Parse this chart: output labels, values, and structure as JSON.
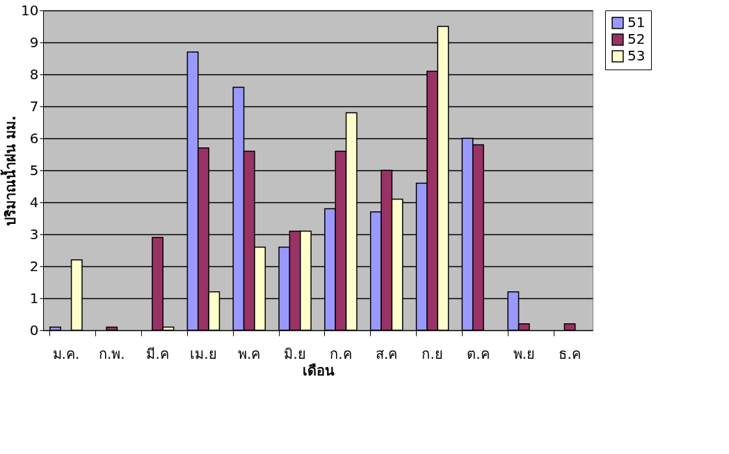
{
  "chart_data": {
    "type": "bar",
    "xlabel": "เดือน",
    "ylabel": "ปริมาณน้ำฝน  มม.",
    "categories": [
      "ม.ค.",
      "ก.พ.",
      "มี.ค",
      "เม.ย",
      "พ.ค",
      "มิ.ย",
      "ก.ค",
      "ส.ค",
      "ก.ย",
      "ต.ค",
      "พ.ย",
      "ธ.ค"
    ],
    "series": [
      {
        "name": "51",
        "color": "#9999ff",
        "values": [
          0.1,
          null,
          null,
          8.7,
          7.6,
          2.6,
          3.8,
          3.7,
          4.6,
          6.0,
          1.2,
          null
        ]
      },
      {
        "name": "52",
        "color": "#993366",
        "values": [
          null,
          0.1,
          2.9,
          5.7,
          5.6,
          3.1,
          5.6,
          5.0,
          8.1,
          5.8,
          0.2,
          0.2
        ]
      },
      {
        "name": "53",
        "color": "#ffffcc",
        "values": [
          2.2,
          null,
          0.1,
          1.2,
          2.6,
          3.1,
          6.8,
          4.1,
          9.5,
          null,
          null,
          null
        ]
      }
    ],
    "ylim": [
      0,
      10
    ],
    "yticks": [
      0,
      1,
      2,
      3,
      4,
      5,
      6,
      7,
      8,
      9,
      10
    ],
    "grid": "y",
    "legend": "right"
  }
}
